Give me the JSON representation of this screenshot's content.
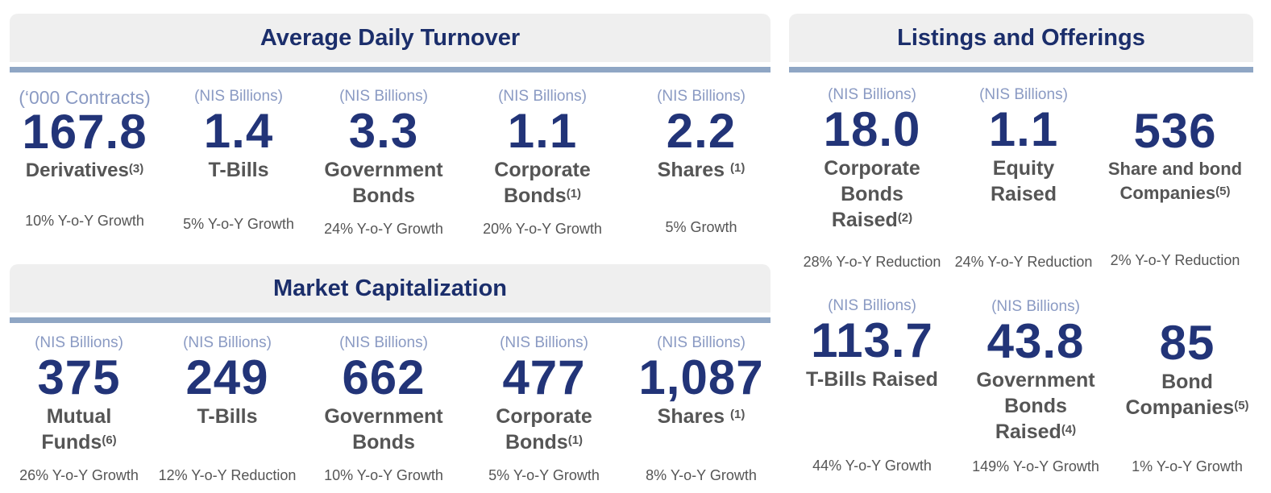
{
  "turnover": {
    "title": "Average Daily Turnover",
    "items": [
      {
        "unit": "(‘000 Contracts)",
        "value": "167.8",
        "label": "Derivatives",
        "note": "(3)",
        "growth": "10% Y-o-Y Growth"
      },
      {
        "unit": "(NIS Billions)",
        "value": "1.4",
        "label": "T-Bills",
        "note": "",
        "growth": "5% Y-o-Y Growth"
      },
      {
        "unit": "(NIS Billions)",
        "value": "3.3",
        "label_line1": "Government",
        "label_line2": "Bonds",
        "note": "",
        "growth": "24% Y-o-Y Growth"
      },
      {
        "unit": "(NIS Billions)",
        "value": "1.1",
        "label_line1": "Corporate",
        "label_line2": "Bonds",
        "note": "(1)",
        "growth": "20% Y-o-Y Growth"
      },
      {
        "unit": "(NIS Billions)",
        "value": "2.2",
        "label": "Shares ",
        "note": "(1)",
        "growth": "5% Growth"
      }
    ]
  },
  "market_cap": {
    "title": "Market Capitalization",
    "items": [
      {
        "unit": "(NIS Billions)",
        "value": "375",
        "label_line1": "Mutual",
        "label_line2": "Funds",
        "note": "(6)",
        "growth": "26% Y-o-Y Growth"
      },
      {
        "unit": "(NIS Billions)",
        "value": "249",
        "label": "T-Bills",
        "note": "",
        "growth": "12% Y-o-Y Reduction"
      },
      {
        "unit": "(NIS Billions)",
        "value": "662",
        "label_line1": "Government",
        "label_line2": "Bonds",
        "note": "",
        "growth": "10% Y-o-Y Growth"
      },
      {
        "unit": "(NIS Billions)",
        "value": "477",
        "label_line1": "Corporate",
        "label_line2": "Bonds",
        "note": "(1)",
        "growth": "5% Y-o-Y Growth"
      },
      {
        "unit": "(NIS Billions)",
        "value": "1,087",
        "label": "Shares ",
        "note": "(1)",
        "growth": "8% Y-o-Y Growth"
      }
    ]
  },
  "listings": {
    "title": "Listings and Offerings",
    "items": [
      {
        "unit": "(NIS Billions)",
        "value": "18.0",
        "label_line1": "Corporate",
        "label_line2": "Bonds",
        "label_line3": "Raised",
        "note": "(2)",
        "growth": "28% Y-o-Y Reduction"
      },
      {
        "unit": "(NIS Billions)",
        "value": "1.1",
        "label_line1": "Equity",
        "label_line2": "Raised",
        "note": "",
        "growth": "24% Y-o-Y Reduction"
      },
      {
        "unit": "",
        "value": "536",
        "label_line1": "Share and bond",
        "label_line2": "Companies",
        "note": "(5)",
        "growth": "2% Y-o-Y Reduction"
      },
      {
        "unit": "(NIS Billions)",
        "value": "113.7",
        "label": "T-Bills Raised",
        "note": "",
        "growth": "44% Y-o-Y Growth"
      },
      {
        "unit": "(NIS Billions)",
        "value": "43.8",
        "label_line1": "Government",
        "label_line2": "Bonds",
        "label_line3": "Raised",
        "note": "(4)",
        "growth": "149% Y-o-Y Growth"
      },
      {
        "unit": "",
        "value": "85",
        "label_line1": "Bond",
        "label_line2": "Companies",
        "note": "(5)",
        "growth": "1% Y-o-Y Growth"
      }
    ]
  }
}
